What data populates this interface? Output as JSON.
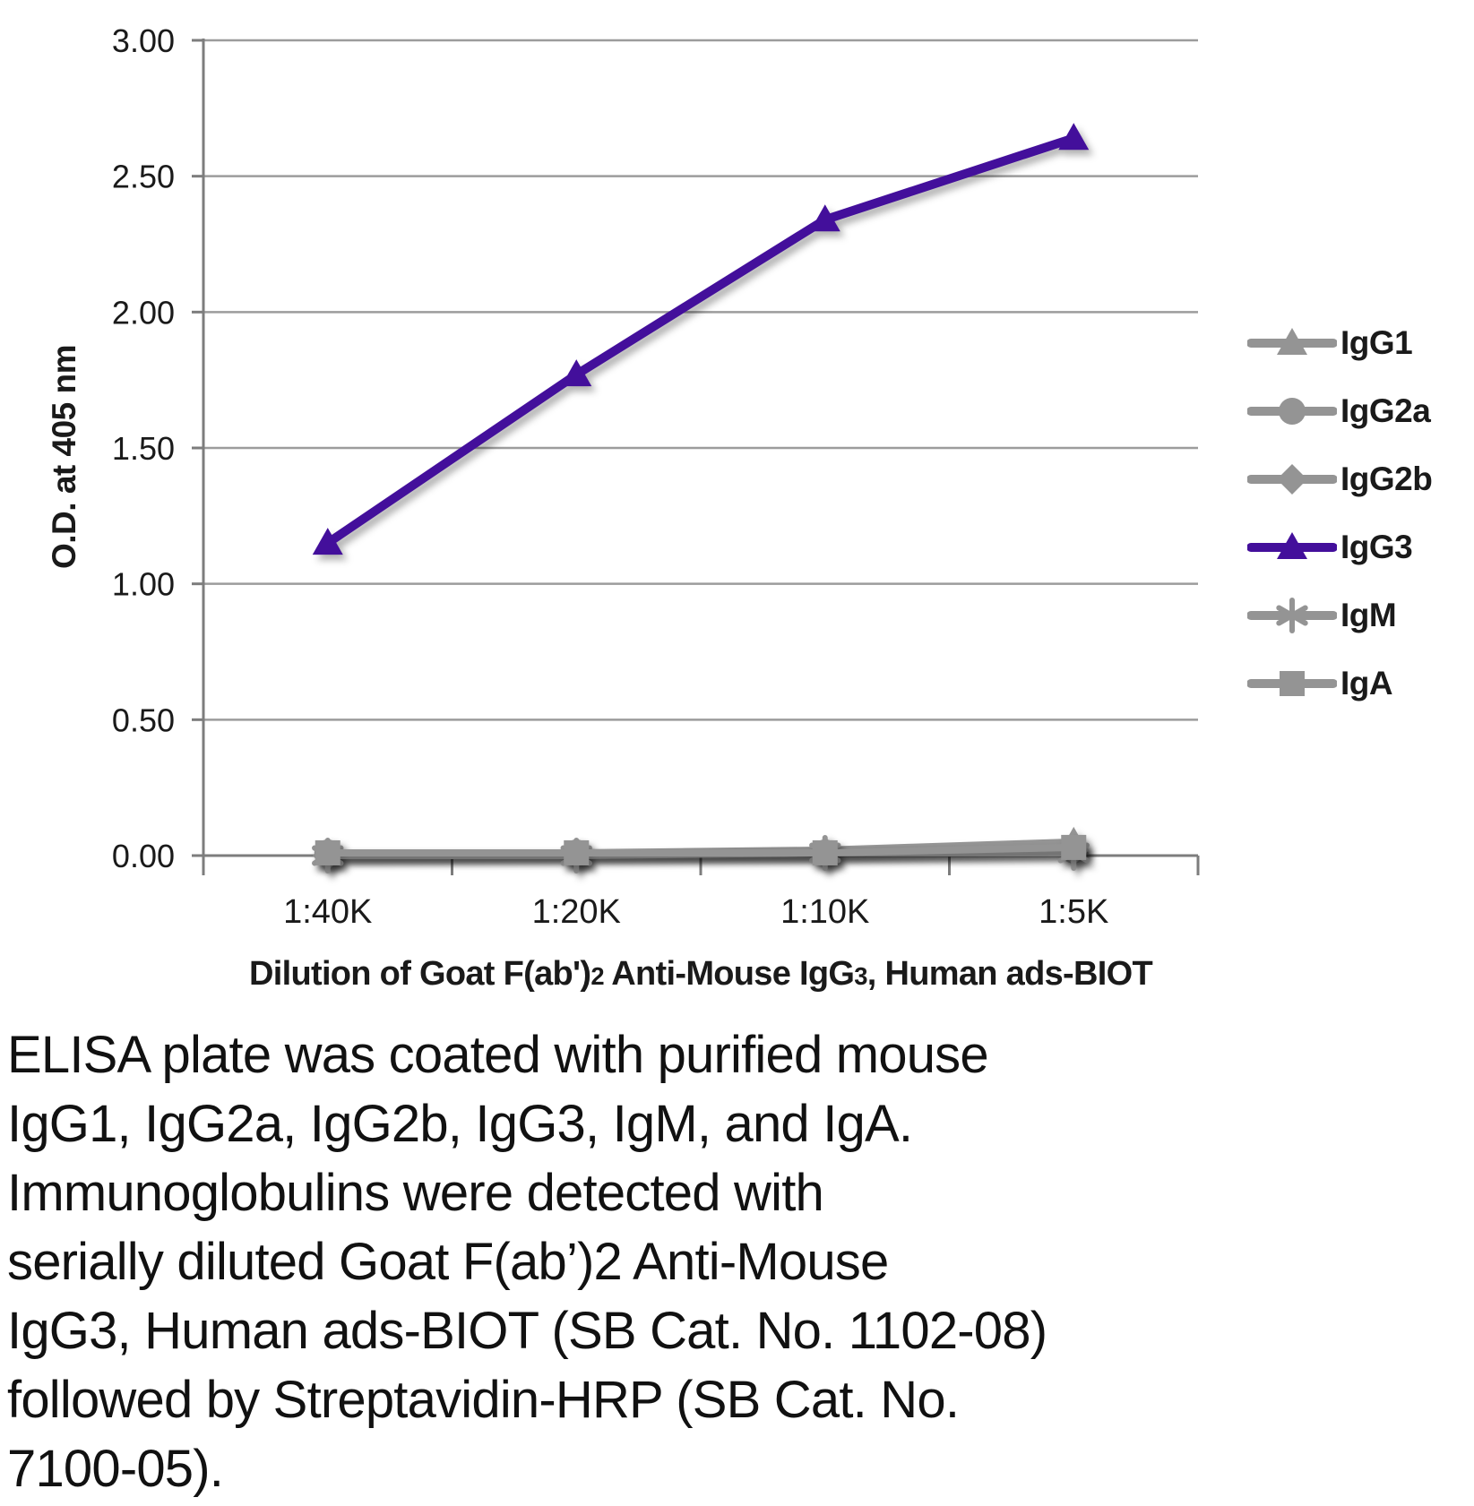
{
  "chart_data": {
    "type": "line",
    "title": "",
    "xlabel": "Dilution of Goat F(ab')2 Anti-Mouse IgG3, Human ads-BIOT",
    "xlabel_parts": [
      {
        "text": "Dilution of Goat F(ab')"
      },
      {
        "text": "2",
        "small": true
      },
      {
        "text": " Anti-Mouse IgG"
      },
      {
        "text": "3",
        "small": true
      },
      {
        "text": ", Human ads-BIOT"
      }
    ],
    "ylabel": "O.D. at 405 nm",
    "categories": [
      "1:40K",
      "1:20K",
      "1:10K",
      "1:5K"
    ],
    "ylim": [
      0,
      3
    ],
    "ytick_step": 0.5,
    "ytick_labels": [
      "0.00",
      "0.50",
      "1.00",
      "1.50",
      "2.00",
      "2.50",
      "3.00"
    ],
    "grid": true,
    "legend_position": "right",
    "series": [
      {
        "name": "IgG1",
        "marker": "triangle",
        "color": "#949494",
        "values": [
          0.01,
          0.01,
          0.02,
          0.05
        ]
      },
      {
        "name": "IgG2a",
        "marker": "circle",
        "color": "#949494",
        "values": [
          0.01,
          0.01,
          0.01,
          0.02
        ]
      },
      {
        "name": "IgG2b",
        "marker": "diamond",
        "color": "#949494",
        "values": [
          0.0,
          0.01,
          0.01,
          0.02
        ]
      },
      {
        "name": "IgG3",
        "marker": "triangle",
        "color": "#430F9B",
        "values": [
          1.15,
          1.77,
          2.34,
          2.64
        ]
      },
      {
        "name": "IgM",
        "marker": "asterisk",
        "color": "#949494",
        "values": [
          0.0,
          0.0,
          0.01,
          0.01
        ]
      },
      {
        "name": "IgA",
        "marker": "square",
        "color": "#949494",
        "values": [
          0.01,
          0.01,
          0.01,
          0.03
        ]
      }
    ]
  },
  "colors": {
    "accent_purple": "#430F9B",
    "series_gray": "#949494",
    "gridline": "#9c9c9c",
    "axis": "#7d7d7d",
    "text": "#1a1a1a"
  },
  "caption": {
    "lines": [
      "ELISA plate was coated with purified mouse",
      "IgG1, IgG2a, IgG2b, IgG3, IgM, and IgA.",
      "Immunoglobulins were detected with",
      "serially diluted Goat F(ab’)2 Anti-Mouse",
      "IgG3, Human ads-BIOT (SB Cat. No. 1102-08)",
      "followed by Streptavidin-HRP (SB Cat. No.",
      "7100-05)."
    ]
  }
}
